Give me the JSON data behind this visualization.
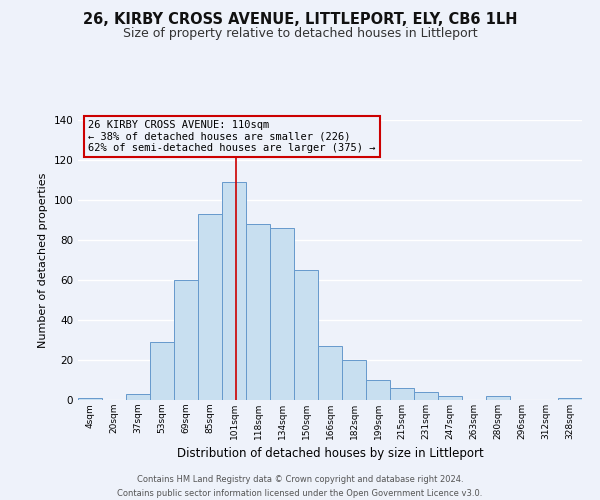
{
  "title": "26, KIRBY CROSS AVENUE, LITTLEPORT, ELY, CB6 1LH",
  "subtitle": "Size of property relative to detached houses in Littleport",
  "xlabel": "Distribution of detached houses by size in Littleport",
  "ylabel": "Number of detached properties",
  "bar_labels": [
    "4sqm",
    "20sqm",
    "37sqm",
    "53sqm",
    "69sqm",
    "85sqm",
    "101sqm",
    "118sqm",
    "134sqm",
    "150sqm",
    "166sqm",
    "182sqm",
    "199sqm",
    "215sqm",
    "231sqm",
    "247sqm",
    "263sqm",
    "280sqm",
    "296sqm",
    "312sqm",
    "328sqm"
  ],
  "bar_heights": [
    1,
    0,
    3,
    29,
    60,
    93,
    109,
    88,
    86,
    65,
    27,
    20,
    10,
    6,
    4,
    2,
    0,
    2,
    0,
    0,
    1
  ],
  "bar_color": "#c8dff0",
  "bar_edge_color": "#6699cc",
  "background_color": "#eef2fa",
  "grid_color": "#ffffff",
  "annotation_line1": "26 KIRBY CROSS AVENUE: 110sqm",
  "annotation_line2": "← 38% of detached houses are smaller (226)",
  "annotation_line3": "62% of semi-detached houses are larger (375) →",
  "annotation_box_edge_color": "#cc0000",
  "vertical_line_color": "#cc0000",
  "vertical_line_x": 6.6,
  "ylim": [
    0,
    140
  ],
  "yticks": [
    0,
    20,
    40,
    60,
    80,
    100,
    120,
    140
  ],
  "footer_line1": "Contains HM Land Registry data © Crown copyright and database right 2024.",
  "footer_line2": "Contains public sector information licensed under the Open Government Licence v3.0.",
  "title_fontsize": 10.5,
  "subtitle_fontsize": 9
}
